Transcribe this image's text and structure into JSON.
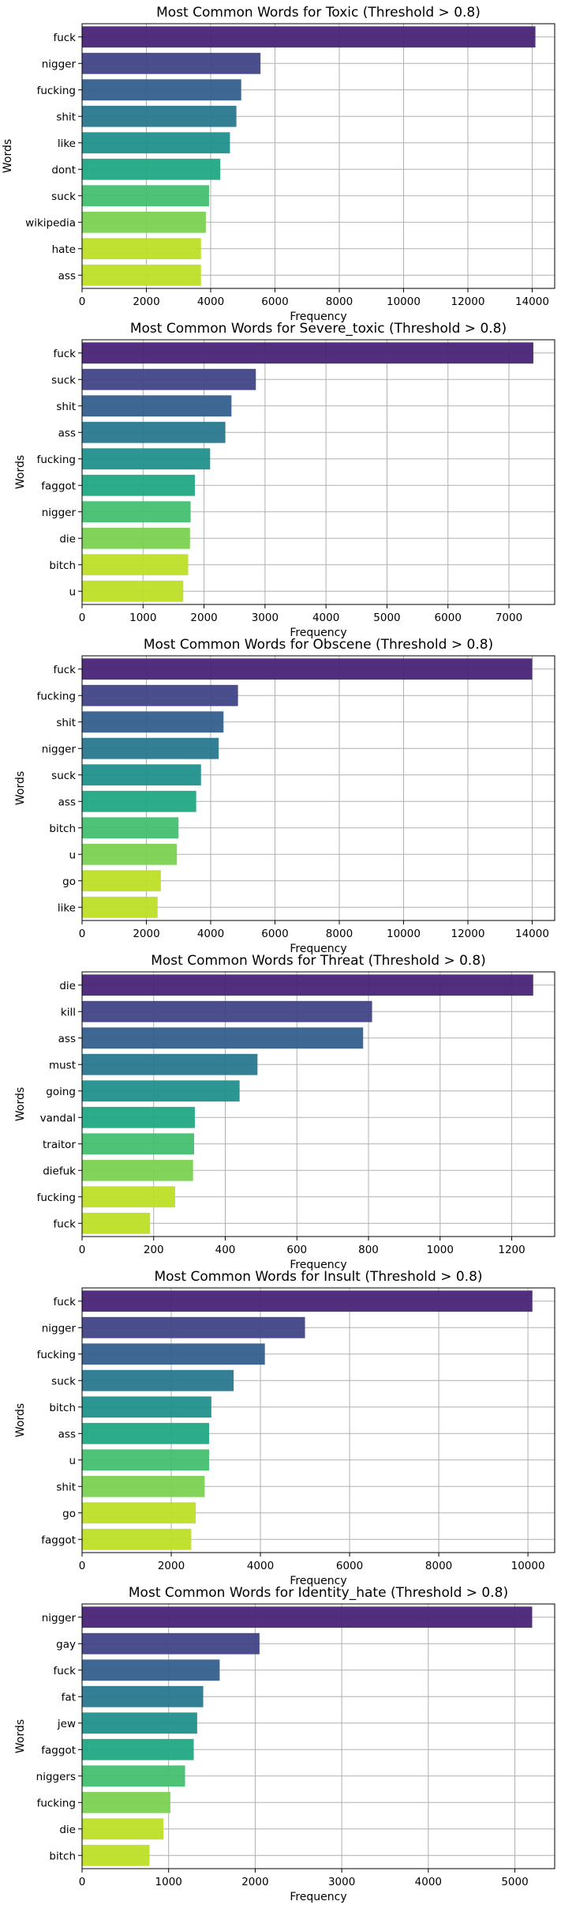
{
  "palette": [
    "#482475",
    "#414487",
    "#355f8d",
    "#2a788e",
    "#21918c",
    "#22a884",
    "#44bf70",
    "#7ad151",
    "#bddf26",
    "#bddf26"
  ],
  "chart_data": [
    {
      "type": "bar",
      "orientation": "horizontal",
      "title": "Most Common Words for Toxic (Threshold > 0.8)",
      "xlabel": "Frequency",
      "ylabel": "Words",
      "categories": [
        "fuck",
        "nigger",
        "fucking",
        "shit",
        "like",
        "dont",
        "suck",
        "wikipedia",
        "hate",
        "ass"
      ],
      "values": [
        14100,
        5550,
        4950,
        4800,
        4600,
        4300,
        3950,
        3850,
        3700,
        3700
      ],
      "xlim": [
        0,
        14700
      ],
      "xticks": [
        0,
        2000,
        4000,
        6000,
        8000,
        10000,
        12000,
        14000
      ],
      "grid": true
    },
    {
      "type": "bar",
      "orientation": "horizontal",
      "title": "Most Common Words for Severe_toxic (Threshold > 0.8)",
      "xlabel": "Frequency",
      "ylabel": "Words",
      "categories": [
        "fuck",
        "suck",
        "shit",
        "ass",
        "fucking",
        "faggot",
        "nigger",
        "die",
        "bitch",
        "u"
      ],
      "values": [
        7400,
        2850,
        2450,
        2350,
        2100,
        1850,
        1780,
        1770,
        1740,
        1660
      ],
      "xlim": [
        0,
        7750
      ],
      "xticks": [
        0,
        1000,
        2000,
        3000,
        4000,
        5000,
        6000,
        7000
      ],
      "grid": true
    },
    {
      "type": "bar",
      "orientation": "horizontal",
      "title": "Most Common Words for Obscene (Threshold > 0.8)",
      "xlabel": "Frequency",
      "ylabel": "Words",
      "categories": [
        "fuck",
        "fucking",
        "shit",
        "nigger",
        "suck",
        "ass",
        "bitch",
        "u",
        "go",
        "like"
      ],
      "values": [
        14000,
        4850,
        4400,
        4250,
        3700,
        3550,
        3000,
        2950,
        2450,
        2350
      ],
      "xlim": [
        0,
        14700
      ],
      "xticks": [
        0,
        2000,
        4000,
        6000,
        8000,
        10000,
        12000,
        14000
      ],
      "grid": true
    },
    {
      "type": "bar",
      "orientation": "horizontal",
      "title": "Most Common Words for Threat (Threshold > 0.8)",
      "xlabel": "Frequency",
      "ylabel": "Words",
      "categories": [
        "die",
        "kill",
        "ass",
        "must",
        "going",
        "vandal",
        "traitor",
        "diefuk",
        "fucking",
        "fuck"
      ],
      "values": [
        1260,
        810,
        785,
        490,
        440,
        315,
        313,
        310,
        260,
        190
      ],
      "xlim": [
        0,
        1320
      ],
      "xticks": [
        0,
        200,
        400,
        600,
        800,
        1000,
        1200
      ],
      "grid": true
    },
    {
      "type": "bar",
      "orientation": "horizontal",
      "title": "Most Common Words for Insult (Threshold > 0.8)",
      "xlabel": "Frequency",
      "ylabel": "Words",
      "categories": [
        "fuck",
        "nigger",
        "fucking",
        "suck",
        "bitch",
        "ass",
        "u",
        "shit",
        "go",
        "faggot"
      ],
      "values": [
        10100,
        5000,
        4100,
        3400,
        2900,
        2850,
        2850,
        2750,
        2550,
        2450
      ],
      "xlim": [
        0,
        10600
      ],
      "xticks": [
        0,
        2000,
        4000,
        6000,
        8000,
        10000
      ],
      "grid": true
    },
    {
      "type": "bar",
      "orientation": "horizontal",
      "title": "Most Common Words for Identity_hate (Threshold > 0.8)",
      "xlabel": "Frequency",
      "ylabel": "Words",
      "categories": [
        "nigger",
        "gay",
        "fuck",
        "fat",
        "jew",
        "faggot",
        "niggers",
        "fucking",
        "die",
        "bitch"
      ],
      "values": [
        5200,
        2050,
        1590,
        1400,
        1330,
        1290,
        1190,
        1020,
        940,
        780
      ],
      "xlim": [
        0,
        5460
      ],
      "xticks": [
        0,
        1000,
        2000,
        3000,
        4000,
        5000
      ],
      "grid": true
    }
  ]
}
